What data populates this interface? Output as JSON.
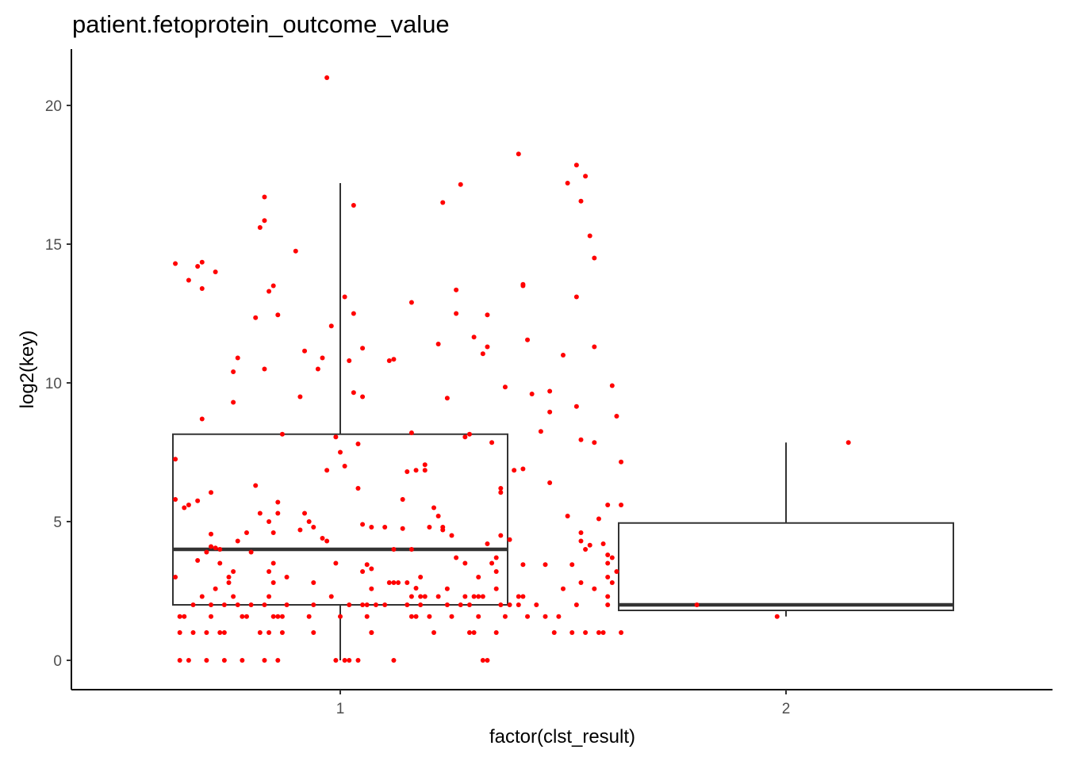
{
  "chart_data": {
    "type": "box",
    "title": "patient.fetoprotein_outcome_value",
    "xlabel": "factor(clst_result)",
    "ylabel": "log2(key)",
    "categories": [
      "1",
      "2"
    ],
    "ylim": [
      -1,
      22
    ],
    "yticks": [
      0,
      5,
      10,
      15,
      20
    ],
    "grid": false,
    "legend": "none",
    "colors": {
      "points": "#ff0000",
      "box": "#333333",
      "axis": "#000000"
    },
    "boxes": [
      {
        "category": "1",
        "whisker_low": 0.0,
        "q1": 2.0,
        "median": 4.0,
        "q3": 8.15,
        "whisker_high": 17.2
      },
      {
        "category": "2",
        "whisker_low": 1.58,
        "q1": 1.8,
        "median": 2.0,
        "q3": 4.95,
        "whisker_high": 7.85
      }
    ],
    "points": [
      {
        "x": 0.63,
        "y": 14.3
      },
      {
        "x": 0.66,
        "y": 13.7
      },
      {
        "x": 0.68,
        "y": 14.2
      },
      {
        "x": 0.69,
        "y": 14.35
      },
      {
        "x": 0.72,
        "y": 14.0
      },
      {
        "x": 0.69,
        "y": 13.4
      },
      {
        "x": 0.69,
        "y": 8.7
      },
      {
        "x": 0.63,
        "y": 7.25
      },
      {
        "x": 0.63,
        "y": 5.8
      },
      {
        "x": 0.65,
        "y": 5.5
      },
      {
        "x": 0.66,
        "y": 5.6
      },
      {
        "x": 0.68,
        "y": 5.75
      },
      {
        "x": 0.71,
        "y": 6.05
      },
      {
        "x": 0.63,
        "y": 3.0
      },
      {
        "x": 0.68,
        "y": 3.6
      },
      {
        "x": 0.7,
        "y": 3.9
      },
      {
        "x": 0.71,
        "y": 4.1
      },
      {
        "x": 0.72,
        "y": 4.05
      },
      {
        "x": 0.71,
        "y": 4.55
      },
      {
        "x": 0.73,
        "y": 4.0
      },
      {
        "x": 0.64,
        "y": 1.58
      },
      {
        "x": 0.64,
        "y": 1.0
      },
      {
        "x": 0.64,
        "y": 0.0
      },
      {
        "x": 0.65,
        "y": 1.58
      },
      {
        "x": 0.66,
        "y": 0.0
      },
      {
        "x": 0.67,
        "y": 2.0
      },
      {
        "x": 0.67,
        "y": 1.0
      },
      {
        "x": 0.69,
        "y": 2.3
      },
      {
        "x": 0.7,
        "y": 1.0
      },
      {
        "x": 0.7,
        "y": 0.0
      },
      {
        "x": 0.71,
        "y": 1.58
      },
      {
        "x": 0.71,
        "y": 2.0
      },
      {
        "x": 0.72,
        "y": 2.58
      },
      {
        "x": 0.73,
        "y": 1.0
      },
      {
        "x": 0.74,
        "y": 1.0
      },
      {
        "x": 0.74,
        "y": 0.0
      },
      {
        "x": 0.73,
        "y": 3.5
      },
      {
        "x": 0.74,
        "y": 2.0
      },
      {
        "x": 0.75,
        "y": 2.8
      },
      {
        "x": 0.75,
        "y": 3.0
      },
      {
        "x": 0.76,
        "y": 3.2
      },
      {
        "x": 0.76,
        "y": 2.3
      },
      {
        "x": 0.77,
        "y": 2.0
      },
      {
        "x": 0.77,
        "y": 4.3
      },
      {
        "x": 0.78,
        "y": 1.58
      },
      {
        "x": 0.78,
        "y": 0.0
      },
      {
        "x": 0.79,
        "y": 1.58
      },
      {
        "x": 0.79,
        "y": 4.6
      },
      {
        "x": 0.76,
        "y": 10.4
      },
      {
        "x": 0.77,
        "y": 10.9
      },
      {
        "x": 0.76,
        "y": 9.3
      },
      {
        "x": 0.8,
        "y": 2.0
      },
      {
        "x": 0.8,
        "y": 3.9
      },
      {
        "x": 0.81,
        "y": 6.3
      },
      {
        "x": 0.81,
        "y": 12.35
      },
      {
        "x": 0.82,
        "y": 15.6
      },
      {
        "x": 0.83,
        "y": 15.85
      },
      {
        "x": 0.83,
        "y": 16.7
      },
      {
        "x": 0.84,
        "y": 13.3
      },
      {
        "x": 0.85,
        "y": 13.5
      },
      {
        "x": 0.86,
        "y": 12.45
      },
      {
        "x": 0.83,
        "y": 10.5
      },
      {
        "x": 0.82,
        "y": 5.3
      },
      {
        "x": 0.82,
        "y": 1.0
      },
      {
        "x": 0.83,
        "y": 0.0
      },
      {
        "x": 0.83,
        "y": 2.0
      },
      {
        "x": 0.84,
        "y": 1.0
      },
      {
        "x": 0.84,
        "y": 2.3
      },
      {
        "x": 0.84,
        "y": 3.2
      },
      {
        "x": 0.84,
        "y": 5.0
      },
      {
        "x": 0.85,
        "y": 2.8
      },
      {
        "x": 0.85,
        "y": 3.5
      },
      {
        "x": 0.85,
        "y": 1.58
      },
      {
        "x": 0.85,
        "y": 4.6
      },
      {
        "x": 0.86,
        "y": 5.7
      },
      {
        "x": 0.86,
        "y": 5.3
      },
      {
        "x": 0.86,
        "y": 1.58
      },
      {
        "x": 0.86,
        "y": 0.0
      },
      {
        "x": 0.87,
        "y": 8.15
      },
      {
        "x": 0.87,
        "y": 1.58
      },
      {
        "x": 0.88,
        "y": 2.0
      },
      {
        "x": 0.88,
        "y": 3.0
      },
      {
        "x": 0.87,
        "y": 1.0
      },
      {
        "x": 0.9,
        "y": 14.75
      },
      {
        "x": 0.91,
        "y": 9.5
      },
      {
        "x": 0.92,
        "y": 11.15
      },
      {
        "x": 0.92,
        "y": 5.3
      },
      {
        "x": 0.93,
        "y": 5.0
      },
      {
        "x": 0.91,
        "y": 4.7
      },
      {
        "x": 0.94,
        "y": 4.8
      },
      {
        "x": 0.93,
        "y": 1.58
      },
      {
        "x": 0.94,
        "y": 1.0
      },
      {
        "x": 0.94,
        "y": 2.0
      },
      {
        "x": 0.94,
        "y": 2.8
      },
      {
        "x": 0.95,
        "y": 10.5
      },
      {
        "x": 0.96,
        "y": 10.9
      },
      {
        "x": 0.96,
        "y": 4.4
      },
      {
        "x": 0.97,
        "y": 6.85
      },
      {
        "x": 0.97,
        "y": 4.3
      },
      {
        "x": 0.98,
        "y": 12.05
      },
      {
        "x": 0.98,
        "y": 2.3
      },
      {
        "x": 0.99,
        "y": 3.5
      },
      {
        "x": 0.99,
        "y": 8.05
      },
      {
        "x": 1.0,
        "y": 7.5
      },
      {
        "x": 0.99,
        "y": 0.0
      },
      {
        "x": 1.0,
        "y": 1.58
      },
      {
        "x": 1.01,
        "y": 0.0
      },
      {
        "x": 1.01,
        "y": 7.0
      },
      {
        "x": 1.01,
        "y": 13.1
      },
      {
        "x": 1.02,
        "y": 10.8
      },
      {
        "x": 1.02,
        "y": 2.0
      },
      {
        "x": 1.02,
        "y": 0.0
      },
      {
        "x": 1.03,
        "y": 16.4
      },
      {
        "x": 1.03,
        "y": 12.5
      },
      {
        "x": 1.03,
        "y": 9.65
      },
      {
        "x": 1.04,
        "y": 6.2
      },
      {
        "x": 1.04,
        "y": 7.8
      },
      {
        "x": 1.04,
        "y": 0.0
      },
      {
        "x": 1.05,
        "y": 11.25
      },
      {
        "x": 1.05,
        "y": 9.5
      },
      {
        "x": 1.05,
        "y": 3.2
      },
      {
        "x": 1.05,
        "y": 2.0
      },
      {
        "x": 1.05,
        "y": 4.9
      },
      {
        "x": 1.06,
        "y": 3.45
      },
      {
        "x": 1.06,
        "y": 1.58
      },
      {
        "x": 1.06,
        "y": 2.0
      },
      {
        "x": 1.07,
        "y": 4.8
      },
      {
        "x": 1.07,
        "y": 2.58
      },
      {
        "x": 1.07,
        "y": 1.0
      },
      {
        "x": 1.07,
        "y": 3.3
      },
      {
        "x": 1.07,
        "y": 1.0
      },
      {
        "x": 1.08,
        "y": 2.0
      },
      {
        "x": 0.97,
        "y": 21.0
      },
      {
        "x": 1.1,
        "y": 2.0
      },
      {
        "x": 1.1,
        "y": 4.8
      },
      {
        "x": 1.11,
        "y": 2.8
      },
      {
        "x": 1.12,
        "y": 2.8
      },
      {
        "x": 1.12,
        "y": 4.0
      },
      {
        "x": 1.12,
        "y": 0.0
      },
      {
        "x": 1.11,
        "y": 10.8
      },
      {
        "x": 1.12,
        "y": 10.85
      },
      {
        "x": 1.13,
        "y": 2.8
      },
      {
        "x": 1.14,
        "y": 5.8
      },
      {
        "x": 1.14,
        "y": 4.75
      },
      {
        "x": 1.15,
        "y": 2.0
      },
      {
        "x": 1.15,
        "y": 2.8
      },
      {
        "x": 1.15,
        "y": 6.8
      },
      {
        "x": 1.16,
        "y": 12.9
      },
      {
        "x": 1.16,
        "y": 8.2
      },
      {
        "x": 1.16,
        "y": 4.0
      },
      {
        "x": 1.16,
        "y": 2.3
      },
      {
        "x": 1.16,
        "y": 1.58
      },
      {
        "x": 1.17,
        "y": 6.85
      },
      {
        "x": 1.17,
        "y": 2.6
      },
      {
        "x": 1.17,
        "y": 1.58
      },
      {
        "x": 1.18,
        "y": 3.0
      },
      {
        "x": 1.18,
        "y": 2.0
      },
      {
        "x": 1.18,
        "y": 2.3
      },
      {
        "x": 1.19,
        "y": 7.05
      },
      {
        "x": 1.19,
        "y": 6.85
      },
      {
        "x": 1.19,
        "y": 2.3
      },
      {
        "x": 1.2,
        "y": 4.8
      },
      {
        "x": 1.2,
        "y": 1.58
      },
      {
        "x": 1.21,
        "y": 1.0
      },
      {
        "x": 1.21,
        "y": 5.5
      },
      {
        "x": 1.22,
        "y": 5.2
      },
      {
        "x": 1.22,
        "y": 2.3
      },
      {
        "x": 1.22,
        "y": 11.4
      },
      {
        "x": 1.23,
        "y": 16.5
      },
      {
        "x": 1.23,
        "y": 4.8
      },
      {
        "x": 1.23,
        "y": 4.7
      },
      {
        "x": 1.24,
        "y": 9.45
      },
      {
        "x": 1.24,
        "y": 2.58
      },
      {
        "x": 1.24,
        "y": 2.0
      },
      {
        "x": 1.25,
        "y": 1.58
      },
      {
        "x": 1.25,
        "y": 4.5
      },
      {
        "x": 1.26,
        "y": 13.35
      },
      {
        "x": 1.26,
        "y": 3.7
      },
      {
        "x": 1.26,
        "y": 12.5
      },
      {
        "x": 1.27,
        "y": 17.15
      },
      {
        "x": 1.27,
        "y": 2.0
      },
      {
        "x": 1.28,
        "y": 8.05
      },
      {
        "x": 1.28,
        "y": 3.5
      },
      {
        "x": 1.28,
        "y": 2.3
      },
      {
        "x": 1.29,
        "y": 8.15
      },
      {
        "x": 1.29,
        "y": 1.0
      },
      {
        "x": 1.29,
        "y": 2.0
      },
      {
        "x": 1.3,
        "y": 11.65
      },
      {
        "x": 1.3,
        "y": 1.0
      },
      {
        "x": 1.3,
        "y": 2.3
      },
      {
        "x": 1.31,
        "y": 1.58
      },
      {
        "x": 1.31,
        "y": 2.3
      },
      {
        "x": 1.31,
        "y": 3.0
      },
      {
        "x": 1.32,
        "y": 11.05
      },
      {
        "x": 1.32,
        "y": 2.3
      },
      {
        "x": 1.32,
        "y": 0.0
      },
      {
        "x": 1.33,
        "y": 0.0
      },
      {
        "x": 1.33,
        "y": 11.3
      },
      {
        "x": 1.33,
        "y": 12.45
      },
      {
        "x": 1.33,
        "y": 4.2
      },
      {
        "x": 1.34,
        "y": 3.5
      },
      {
        "x": 1.34,
        "y": 7.85
      },
      {
        "x": 1.35,
        "y": 2.58
      },
      {
        "x": 1.35,
        "y": 1.0
      },
      {
        "x": 1.35,
        "y": 3.7
      },
      {
        "x": 1.35,
        "y": 3.2
      },
      {
        "x": 1.36,
        "y": 6.05
      },
      {
        "x": 1.36,
        "y": 6.2
      },
      {
        "x": 1.36,
        "y": 2.0
      },
      {
        "x": 1.36,
        "y": 4.5
      },
      {
        "x": 1.37,
        "y": 1.58
      },
      {
        "x": 1.37,
        "y": 9.85
      },
      {
        "x": 1.38,
        "y": 4.35
      },
      {
        "x": 1.38,
        "y": 2.0
      },
      {
        "x": 1.39,
        "y": 6.85
      },
      {
        "x": 1.4,
        "y": 2.3
      },
      {
        "x": 1.4,
        "y": 18.25
      },
      {
        "x": 1.4,
        "y": 2.0
      },
      {
        "x": 1.41,
        "y": 13.5
      },
      {
        "x": 1.41,
        "y": 13.55
      },
      {
        "x": 1.41,
        "y": 6.9
      },
      {
        "x": 1.41,
        "y": 3.45
      },
      {
        "x": 1.41,
        "y": 2.3
      },
      {
        "x": 1.42,
        "y": 11.55
      },
      {
        "x": 1.42,
        "y": 1.58
      },
      {
        "x": 1.43,
        "y": 9.6
      },
      {
        "x": 1.44,
        "y": 2.0
      },
      {
        "x": 1.45,
        "y": 8.25
      },
      {
        "x": 1.46,
        "y": 3.45
      },
      {
        "x": 1.46,
        "y": 1.58
      },
      {
        "x": 1.47,
        "y": 6.4
      },
      {
        "x": 1.47,
        "y": 8.95
      },
      {
        "x": 1.47,
        "y": 9.7
      },
      {
        "x": 1.48,
        "y": 1.0
      },
      {
        "x": 1.49,
        "y": 1.58
      },
      {
        "x": 1.5,
        "y": 11.0
      },
      {
        "x": 1.5,
        "y": 2.58
      },
      {
        "x": 1.51,
        "y": 17.2
      },
      {
        "x": 1.51,
        "y": 5.2
      },
      {
        "x": 1.52,
        "y": 3.45
      },
      {
        "x": 1.52,
        "y": 1.0
      },
      {
        "x": 1.53,
        "y": 9.15
      },
      {
        "x": 1.53,
        "y": 13.1
      },
      {
        "x": 1.53,
        "y": 2.0
      },
      {
        "x": 1.53,
        "y": 17.85
      },
      {
        "x": 1.54,
        "y": 16.55
      },
      {
        "x": 1.54,
        "y": 7.95
      },
      {
        "x": 1.54,
        "y": 4.6
      },
      {
        "x": 1.54,
        "y": 4.3
      },
      {
        "x": 1.54,
        "y": 2.8
      },
      {
        "x": 1.55,
        "y": 17.45
      },
      {
        "x": 1.55,
        "y": 4.0
      },
      {
        "x": 1.55,
        "y": 1.0
      },
      {
        "x": 1.56,
        "y": 15.3
      },
      {
        "x": 1.56,
        "y": 4.15
      },
      {
        "x": 1.57,
        "y": 14.5
      },
      {
        "x": 1.57,
        "y": 11.3
      },
      {
        "x": 1.57,
        "y": 7.85
      },
      {
        "x": 1.57,
        "y": 2.58
      },
      {
        "x": 1.58,
        "y": 5.1
      },
      {
        "x": 1.58,
        "y": 1.0
      },
      {
        "x": 1.59,
        "y": 1.0
      },
      {
        "x": 1.59,
        "y": 4.2
      },
      {
        "x": 1.6,
        "y": 5.6
      },
      {
        "x": 1.6,
        "y": 3.8
      },
      {
        "x": 1.6,
        "y": 3.5
      },
      {
        "x": 1.6,
        "y": 3.0
      },
      {
        "x": 1.6,
        "y": 2.3
      },
      {
        "x": 1.6,
        "y": 2.0
      },
      {
        "x": 1.61,
        "y": 2.8
      },
      {
        "x": 1.61,
        "y": 9.9
      },
      {
        "x": 1.61,
        "y": 3.7
      },
      {
        "x": 1.62,
        "y": 3.2
      },
      {
        "x": 1.62,
        "y": 8.8
      },
      {
        "x": 1.63,
        "y": 7.15
      },
      {
        "x": 1.63,
        "y": 5.6
      },
      {
        "x": 1.63,
        "y": 1.0
      },
      {
        "x": 1.8,
        "y": 2.0
      },
      {
        "x": 1.98,
        "y": 1.58
      },
      {
        "x": 2.14,
        "y": 7.85
      }
    ]
  }
}
